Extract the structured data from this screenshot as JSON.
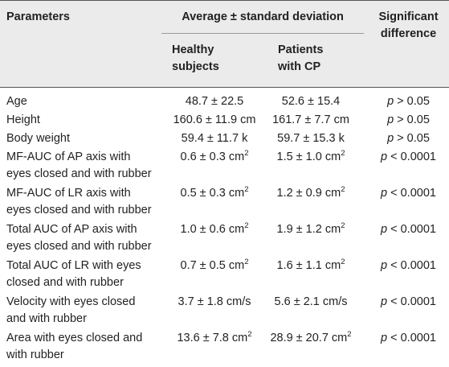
{
  "headers": {
    "parameters": "Parameters",
    "avg": "Average ± standard deviation",
    "healthy": [
      "Healthy",
      "subjects"
    ],
    "patients": [
      "Patients",
      "with CP"
    ],
    "significance": [
      "Significant",
      "difference"
    ]
  },
  "rows": [
    {
      "param": [
        "Age"
      ],
      "healthy": "48.7 ± 22.5",
      "patients": "52.6 ± 15.4",
      "p_sym": "p",
      "p_rel": " > 0.05"
    },
    {
      "param": [
        "Height"
      ],
      "healthy": "160.6 ± 11.9 cm",
      "patients": "161.7 ± 7.7 cm",
      "p_sym": "p",
      "p_rel": " > 0.05"
    },
    {
      "param": [
        "Body weight"
      ],
      "healthy": "59.4 ± 11.7 k",
      "patients": "59.7 ± 15.3 k",
      "p_sym": "p",
      "p_rel": " > 0.05"
    },
    {
      "param": [
        "MF-AUC of AP axis with",
        "eyes closed and with rubber"
      ],
      "healthy": "0.6 ± 0.3 cm",
      "healthy_sup": "2",
      "patients": "1.5 ± 1.0 cm",
      "patients_sup": "2",
      "p_sym": "p",
      "p_rel": " < 0.0001"
    },
    {
      "param": [
        "MF-AUC of LR axis with",
        "eyes closed and with rubber"
      ],
      "healthy": "0.5 ± 0.3 cm",
      "healthy_sup": "2",
      "patients": "1.2 ± 0.9 cm",
      "patients_sup": "2",
      "p_sym": "p",
      "p_rel": " < 0.0001"
    },
    {
      "param": [
        "Total AUC of AP axis with",
        "eyes closed and with rubber"
      ],
      "healthy": "1.0 ± 0.6 cm",
      "healthy_sup": "2",
      "patients": "1.9 ± 1.2 cm",
      "patients_sup": "2",
      "p_sym": "p",
      "p_rel": " < 0.0001"
    },
    {
      "param": [
        "Total AUC of LR with eyes",
        "closed and with rubber"
      ],
      "healthy": "0.7 ± 0.5 cm",
      "healthy_sup": "2",
      "patients": "1.6 ± 1.1 cm",
      "patients_sup": "2",
      "p_sym": "p",
      "p_rel": " < 0.0001"
    },
    {
      "param": [
        "Velocity with eyes closed",
        "and with rubber"
      ],
      "healthy": "3.7 ± 1.8 cm/s",
      "patients": "5.6 ± 2.1 cm/s",
      "p_sym": "p",
      "p_rel": " < 0.0001"
    },
    {
      "param": [
        "Area with eyes closed and",
        "with rubber"
      ],
      "healthy": "13.6 ± 7.8 cm",
      "healthy_sup": "2",
      "patients": "28.9 ± 20.7 cm",
      "patients_sup": "2",
      "p_sym": "p",
      "p_rel": " < 0.0001"
    }
  ]
}
